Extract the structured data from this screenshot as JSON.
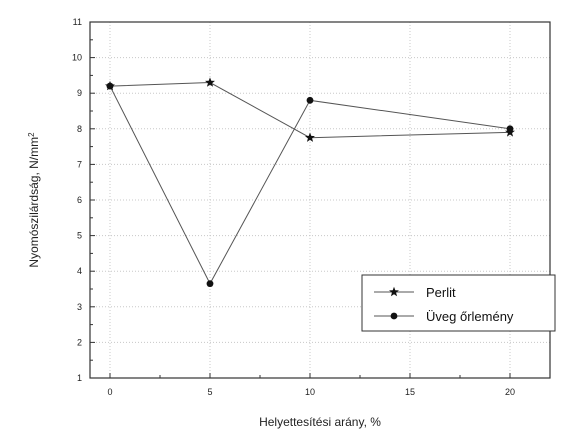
{
  "chart_data": {
    "type": "line",
    "xlabel": "Helyettesítési arány, %",
    "ylabel": "Nyomószilárdság, N/mm",
    "ylabel_superscript": "2",
    "x": [
      0,
      5,
      10,
      20
    ],
    "xlim": [
      -1,
      22
    ],
    "ylim": [
      1,
      11
    ],
    "xticks": [
      0,
      5,
      10,
      15,
      20
    ],
    "yticks": [
      1,
      2,
      3,
      4,
      5,
      6,
      7,
      8,
      9,
      10,
      11
    ],
    "grid": true,
    "legend_position": "bottom-right",
    "series": [
      {
        "name": "Perlit",
        "marker": "star",
        "values": [
          9.2,
          9.3,
          7.75,
          7.9
        ]
      },
      {
        "name": "Üveg őrlemény",
        "marker": "circle",
        "values": [
          9.2,
          3.65,
          8.8,
          8.0
        ]
      }
    ]
  }
}
